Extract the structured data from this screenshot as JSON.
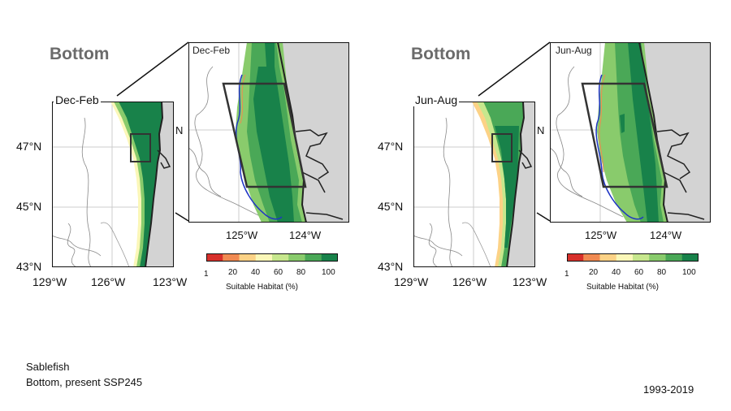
{
  "panels": [
    {
      "depth_title": "Bottom",
      "season": "Dec-Feb",
      "inset_season": "Dec-Feb",
      "lat_ticks": [
        "47°N",
        "45°N",
        "43°N"
      ],
      "lon_ticks": [
        "129°W",
        "126°W",
        "123°W"
      ],
      "inset_lon_ticks": [
        "125°W",
        "124°W"
      ],
      "inset_lat_tick": "N"
    },
    {
      "depth_title": "Bottom",
      "season": "Jun-Aug",
      "inset_season": "Jun-Aug",
      "lat_ticks": [
        "47°N",
        "45°N",
        "43°N"
      ],
      "lon_ticks": [
        "129°W",
        "126°W",
        "123°W"
      ],
      "inset_lon_ticks": [
        "125°W",
        "124°W"
      ],
      "inset_lat_tick": "N"
    }
  ],
  "colorbar": {
    "ticks": [
      "1",
      "20",
      "40",
      "60",
      "80",
      "100"
    ],
    "label": "Suitable Habitat (%)",
    "colors": [
      "#d7302b",
      "#f08a52",
      "#fcd286",
      "#fbf7b8",
      "#c7e78d",
      "#89cb6c",
      "#4aa857",
      "#18824a"
    ]
  },
  "caption": {
    "species": "Sablefish",
    "scenario": "Bottom, present SSP245",
    "years": "1993-2019"
  },
  "colors": {
    "land": "#d3d3d3",
    "coast": "#222222",
    "isobath_blue": "#1f35c4",
    "isobath_gray": "#888888"
  }
}
